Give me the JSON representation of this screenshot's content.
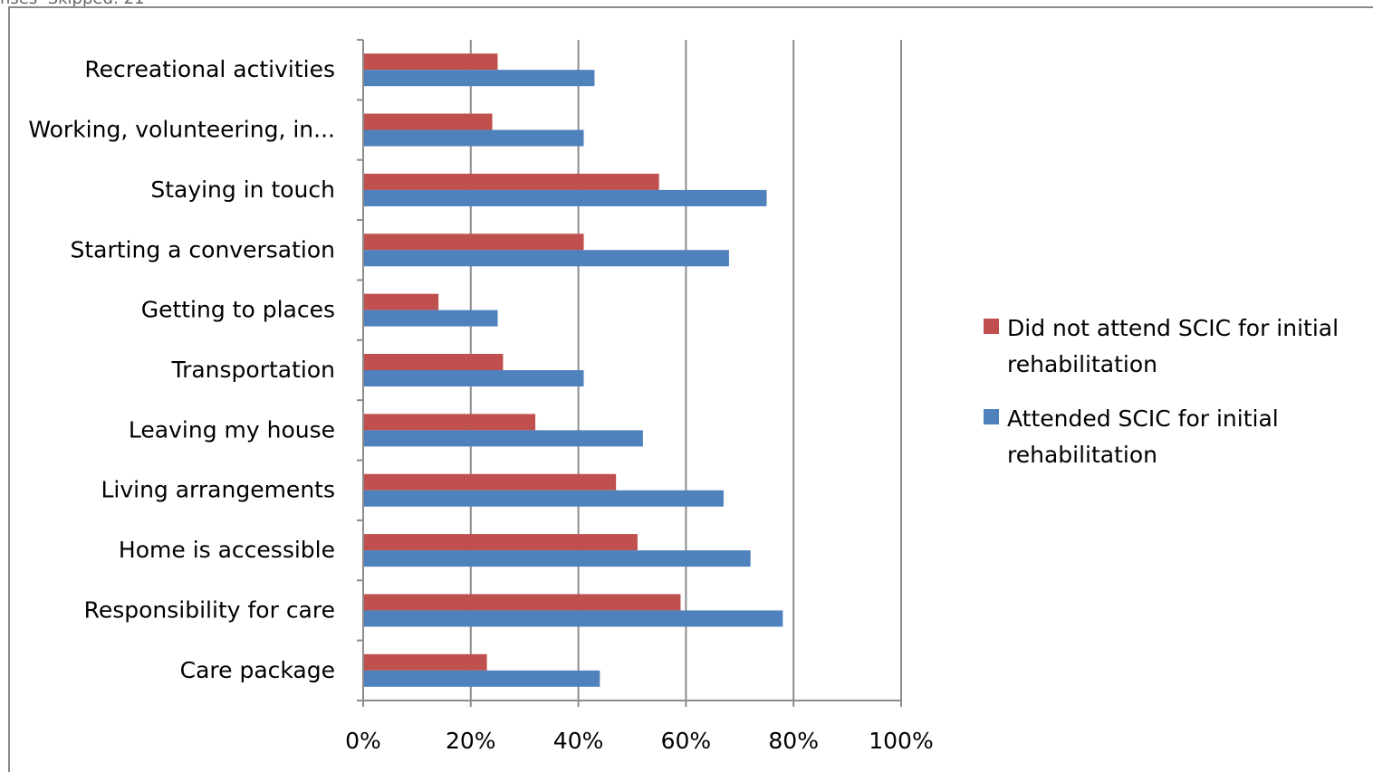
{
  "top_note": "nses  Skipped: 21",
  "chart_data": {
    "type": "bar",
    "orientation": "horizontal",
    "title": "",
    "xlabel": "",
    "ylabel": "",
    "xlim": [
      0,
      100
    ],
    "x_ticks": [
      "0%",
      "20%",
      "40%",
      "60%",
      "80%",
      "100%"
    ],
    "x_tick_values": [
      0,
      20,
      40,
      60,
      80,
      100
    ],
    "grid": "vertical major gridlines",
    "legend_position": "right",
    "categories": [
      "Recreational activities",
      "Working, volunteering, in...",
      "Staying in touch",
      "Starting a conversation",
      "Getting to places",
      "Transportation",
      "Leaving my house",
      "Living arrangements",
      "Home is accessible",
      "Responsibility for care",
      "Care package"
    ],
    "series": [
      {
        "name": "Did not attend SCIC for initial rehabilitation",
        "legend_lines": [
          "Did not attend SCIC for initial",
          "rehabilitation"
        ],
        "color": "#c0504d",
        "values": [
          25,
          24,
          55,
          41,
          14,
          26,
          32,
          47,
          51,
          59,
          23
        ]
      },
      {
        "name": "Attended SCIC for initial rehabilitation",
        "legend_lines": [
          "Attended SCIC for initial",
          "rehabilitation"
        ],
        "color": "#4f81bd",
        "values": [
          43,
          41,
          75,
          68,
          25,
          41,
          52,
          67,
          72,
          78,
          44
        ]
      }
    ]
  }
}
